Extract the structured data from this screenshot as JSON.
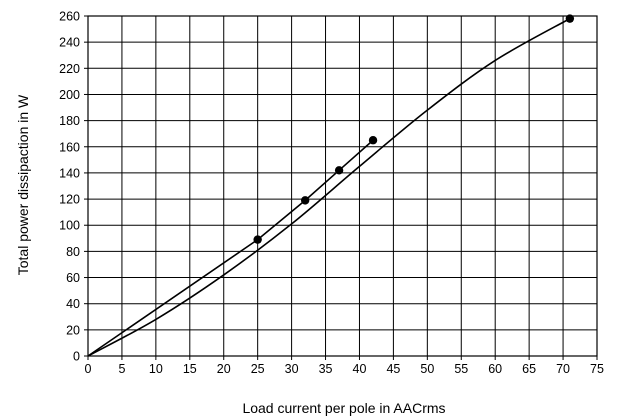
{
  "chart_data": {
    "type": "line",
    "title": "",
    "xlabel": "Load current per pole in AACrms",
    "ylabel": "Total power dissipaction in W",
    "xlim": [
      0,
      75
    ],
    "ylim": [
      0,
      260
    ],
    "x_ticks": [
      0,
      5,
      10,
      15,
      20,
      25,
      30,
      35,
      40,
      45,
      50,
      55,
      60,
      65,
      70,
      75
    ],
    "y_ticks": [
      0,
      20,
      40,
      60,
      80,
      100,
      120,
      140,
      160,
      180,
      200,
      220,
      240,
      260
    ],
    "grid": true,
    "series": [
      {
        "markers": true,
        "points": [
          [
            0,
            0
          ],
          [
            25,
            89
          ],
          [
            32,
            119
          ],
          [
            37,
            142
          ],
          [
            42,
            165
          ]
        ]
      },
      {
        "markers": true,
        "points": [
          [
            0,
            0
          ],
          [
            10,
            28
          ],
          [
            20,
            62
          ],
          [
            30,
            101
          ],
          [
            40,
            145
          ],
          [
            50,
            188
          ],
          [
            60,
            226
          ],
          [
            71,
            258
          ]
        ],
        "marker_points": [
          [
            71,
            258
          ]
        ]
      }
    ]
  }
}
